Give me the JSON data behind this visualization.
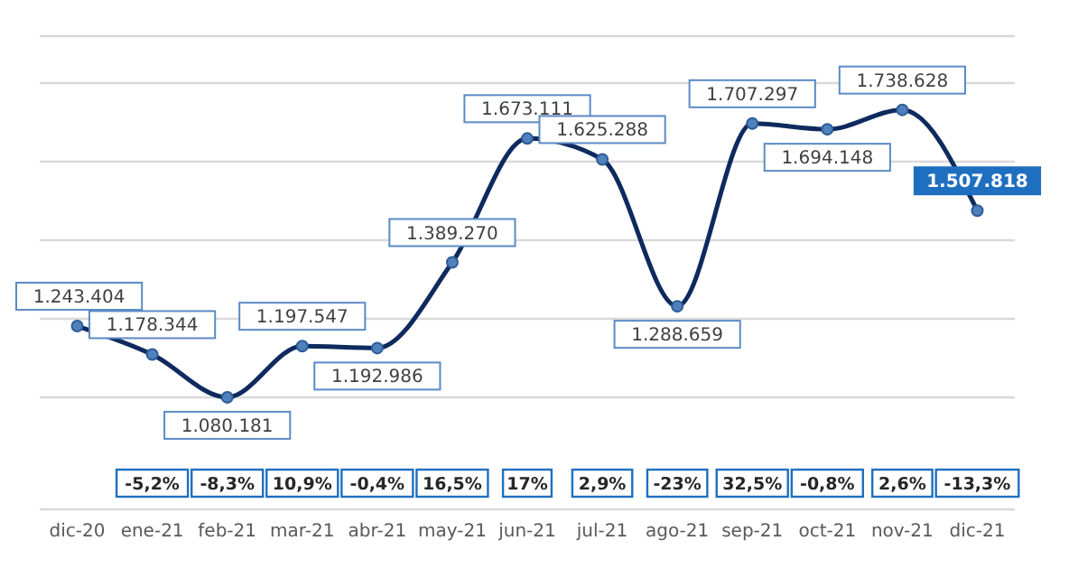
{
  "chart_data": {
    "type": "line",
    "categories": [
      "dic-20",
      "ene-21",
      "feb-21",
      "mar-21",
      "abr-21",
      "may-21",
      "jun-21",
      "jul-21",
      "ago-21",
      "sep-21",
      "oct-21",
      "nov-21",
      "dic-21"
    ],
    "series": [
      {
        "color": "#0e2a5e",
        "values": [
          1243404,
          1178344,
          1080181,
          1197547,
          1192986,
          1389270,
          1673111,
          1625288,
          1288659,
          1707297,
          1694148,
          1738628,
          1507818
        ],
        "value_labels": [
          "1.243.404",
          "1.178.344",
          "1.080.181",
          "1.197.547",
          "1.192.986",
          "1.389.270",
          "1.673.111",
          "1.625.288",
          "1.288.659",
          "1.707.297",
          "1.694.148",
          "1.738.628",
          "1.507.818"
        ]
      }
    ],
    "marker": "circle",
    "line_style": "solid",
    "grid": "y",
    "tick_labels": "x",
    "annotations": [
      "-5,2%",
      "-8,3%",
      "10,9%",
      "-0,4%",
      "16,5%",
      "17%",
      "2,9%",
      "-23%",
      "32,5%",
      "-0,8%",
      "2,6%",
      "-13,3%"
    ]
  }
}
